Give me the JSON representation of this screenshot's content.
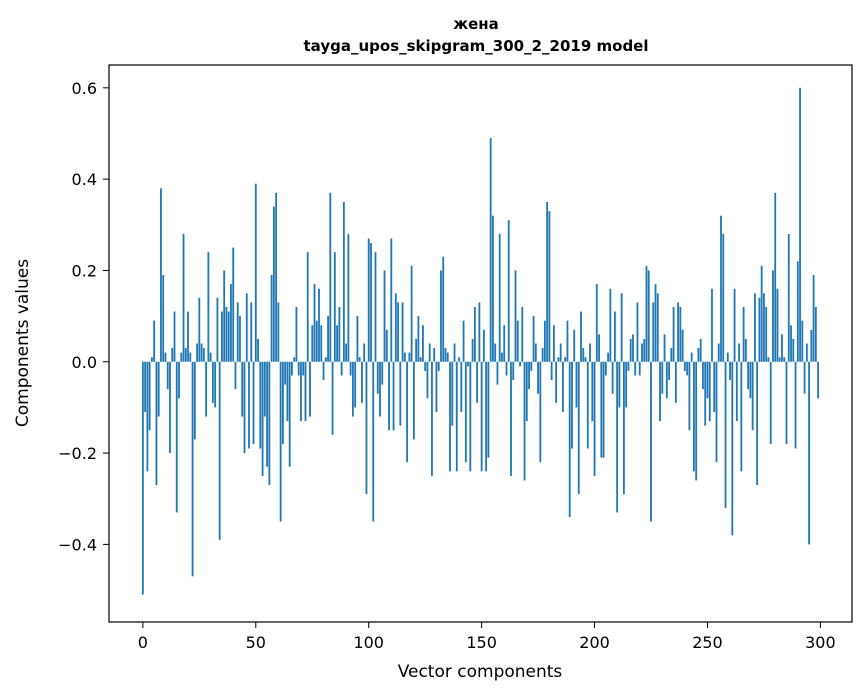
{
  "chart_data": {
    "type": "bar",
    "title": "жена",
    "subtitle": "tayga_upos_skipgram_300_2_2019 model",
    "xlabel": "Vector components",
    "ylabel": "Components values",
    "xlim": [
      -15,
      314
    ],
    "ylim": [
      -0.57,
      0.65
    ],
    "xticks": [
      0,
      50,
      100,
      150,
      200,
      250,
      300
    ],
    "xtick_labels": [
      "0",
      "50",
      "100",
      "150",
      "200",
      "250",
      "300"
    ],
    "yticks": [
      -0.4,
      -0.2,
      0.0,
      0.2,
      0.4,
      0.6
    ],
    "ytick_labels": [
      "−0.4",
      "−0.2",
      "0.0",
      "0.2",
      "0.4",
      "0.6"
    ],
    "grid": false,
    "bar_color": "#1f77b4",
    "values": [
      -0.51,
      -0.11,
      -0.24,
      -0.15,
      0.01,
      0.09,
      -0.27,
      -0.12,
      0.38,
      0.19,
      0.02,
      -0.06,
      -0.2,
      0.03,
      0.11,
      -0.33,
      -0.08,
      0.02,
      0.28,
      0.03,
      0.11,
      0.02,
      -0.47,
      -0.17,
      0.04,
      0.14,
      0.04,
      0.03,
      -0.12,
      0.24,
      0.02,
      -0.09,
      -0.1,
      0.14,
      -0.39,
      0.11,
      0.2,
      0.12,
      0.11,
      0.17,
      0.25,
      -0.06,
      0.13,
      0.1,
      -0.12,
      -0.2,
      0.15,
      -0.19,
      0.13,
      -0.18,
      0.39,
      0.05,
      -0.19,
      -0.25,
      -0.12,
      -0.23,
      -0.27,
      0.19,
      0.34,
      0.37,
      0.13,
      -0.35,
      -0.18,
      -0.05,
      -0.13,
      -0.23,
      -0.03,
      0.01,
      0.12,
      -0.03,
      -0.13,
      -0.03,
      -0.13,
      0.24,
      -0.12,
      0.08,
      0.17,
      0.09,
      0.16,
      0.08,
      -0.04,
      0.01,
      0.1,
      0.37,
      -0.16,
      0.24,
      0.08,
      0.12,
      -0.03,
      0.35,
      0.04,
      0.28,
      -0.03,
      -0.12,
      -0.1,
      0.1,
      0.01,
      -0.09,
      0.04,
      -0.29,
      0.27,
      0.26,
      -0.35,
      0.24,
      -0.07,
      -0.12,
      -0.05,
      0.2,
      0.07,
      -0.15,
      0.27,
      -0.15,
      0.15,
      0.13,
      -0.14,
      0.13,
      0.02,
      -0.22,
      0.02,
      0.21,
      -0.17,
      0.05,
      0.1,
      0.01,
      0.08,
      -0.02,
      -0.08,
      0.04,
      -0.25,
      0.03,
      -0.11,
      -0.02,
      0.2,
      0.23,
      0.03,
      0.02,
      -0.24,
      -0.14,
      0.04,
      -0.24,
      0.01,
      -0.11,
      0.09,
      -0.22,
      -0.01,
      -0.24,
      0.05,
      0.12,
      -0.09,
      0.13,
      -0.24,
      0.07,
      -0.24,
      -0.21,
      0.49,
      0.32,
      0.04,
      -0.05,
      0.28,
      0.02,
      0.08,
      -0.03,
      0.31,
      -0.25,
      -0.04,
      0.2,
      0.09,
      -0.01,
      0.12,
      -0.26,
      -0.13,
      -0.06,
      -0.02,
      0.1,
      0.04,
      -0.07,
      -0.22,
      0.03,
      0.09,
      0.35,
      0.33,
      -0.04,
      0.08,
      -0.09,
      0.01,
      0.04,
      -0.11,
      0.01,
      0.09,
      -0.34,
      -0.19,
      0.07,
      -0.1,
      -0.29,
      0.11,
      0.03,
      0.01,
      -0.19,
      0.04,
      -0.13,
      -0.25,
      0.17,
      0.06,
      -0.21,
      -0.21,
      -0.03,
      0.02,
      0.16,
      -0.07,
      0.11,
      -0.33,
      -0.1,
      0.15,
      -0.29,
      -0.1,
      -0.02,
      0.05,
      0.06,
      -0.03,
      0.13,
      -0.03,
      0.04,
      0.05,
      0.21,
      0.2,
      -0.35,
      0.13,
      0.17,
      0.15,
      -0.13,
      -0.07,
      0.06,
      -0.08,
      -0.04,
      0.03,
      0.12,
      -0.09,
      0.13,
      0.12,
      0.07,
      -0.02,
      -0.03,
      -0.15,
      0.02,
      -0.24,
      -0.26,
      0.03,
      0.05,
      -0.06,
      -0.14,
      -0.08,
      -0.13,
      0.16,
      -0.11,
      -0.22,
      0.04,
      0.32,
      0.28,
      -0.32,
      0.02,
      -0.04,
      -0.38,
      0.16,
      -0.13,
      0.04,
      -0.24,
      0.12,
      0.05,
      -0.06,
      -0.08,
      -0.15,
      0.15,
      -0.27,
      0.14,
      0.21,
      0.15,
      0.12,
      0.01,
      -0.18,
      0.2,
      0.37,
      0.16,
      0.01,
      0.06,
      0.01,
      -0.18,
      0.28,
      0.08,
      0.05,
      -0.19,
      0.22,
      0.6,
      0.09,
      -0.07,
      0.04,
      -0.4,
      0.07,
      0.19,
      0.12,
      -0.08
    ]
  }
}
